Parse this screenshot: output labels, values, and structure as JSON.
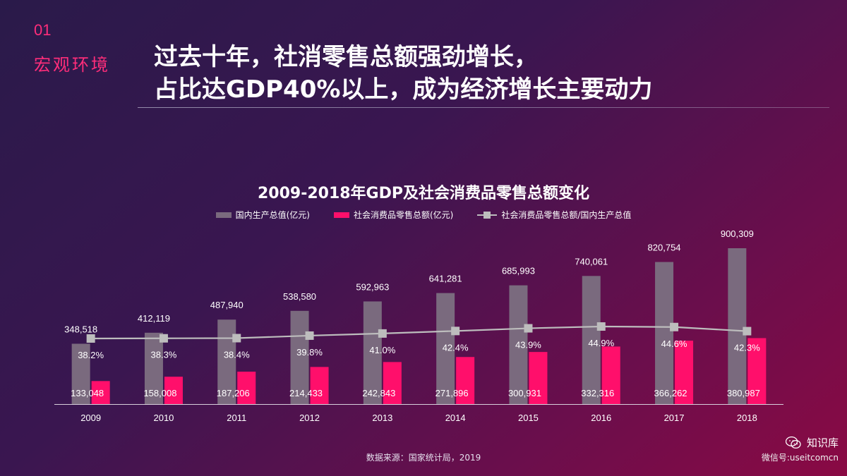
{
  "header": {
    "section_number": "01",
    "section_name": "宏观环境",
    "headline_line1": "过去十年，社消零售总额强劲增长，",
    "headline_line2": "占比达GDP40%以上，成为经济增长主要动力"
  },
  "chart_data": {
    "type": "bar",
    "title": "2009-2018年GDP及社会消费品零售总额变化",
    "categories": [
      "2009",
      "2010",
      "2011",
      "2012",
      "2013",
      "2014",
      "2015",
      "2016",
      "2017",
      "2018"
    ],
    "series": [
      {
        "name": "国内生产总值(亿元)",
        "type": "bar",
        "color": "#7a6a7e",
        "values": [
          348518,
          412119,
          487940,
          538580,
          592963,
          641281,
          685993,
          740061,
          820754,
          900309
        ],
        "labels": [
          "348,518",
          "412,119",
          "487,940",
          "538,580",
          "592,963",
          "641,281",
          "685,993",
          "740,061",
          "820,754",
          "900,309"
        ]
      },
      {
        "name": "社会消费品零售总额(亿元)",
        "type": "bar",
        "color": "#ff0f6b",
        "values": [
          133048,
          158008,
          187206,
          214433,
          242843,
          271896,
          300931,
          332316,
          366262,
          380987
        ],
        "labels": [
          "133,048",
          "158,008",
          "187,206",
          "214,433",
          "242,843",
          "271,896",
          "300,931",
          "332,316",
          "366,262",
          "380,987"
        ]
      },
      {
        "name": "社会消费品零售总额/国内生产总值",
        "type": "line",
        "color": "#bdbdbd",
        "values": [
          38.2,
          38.3,
          38.4,
          39.8,
          41.0,
          42.4,
          43.9,
          44.9,
          44.6,
          42.3
        ],
        "labels": [
          "38.2%",
          "38.3%",
          "38.4%",
          "39.8%",
          "41.0%",
          "42.4%",
          "43.9%",
          "44.9%",
          "44.6%",
          "42.3%"
        ]
      }
    ],
    "legend_position": "top-center",
    "grid": false
  },
  "footer": {
    "source": "数据来源：国家统计局，2019",
    "brand_name": "知识库",
    "brand_sub": "微信号:useitcomcn",
    "brand_icon": "wechat-icon"
  }
}
